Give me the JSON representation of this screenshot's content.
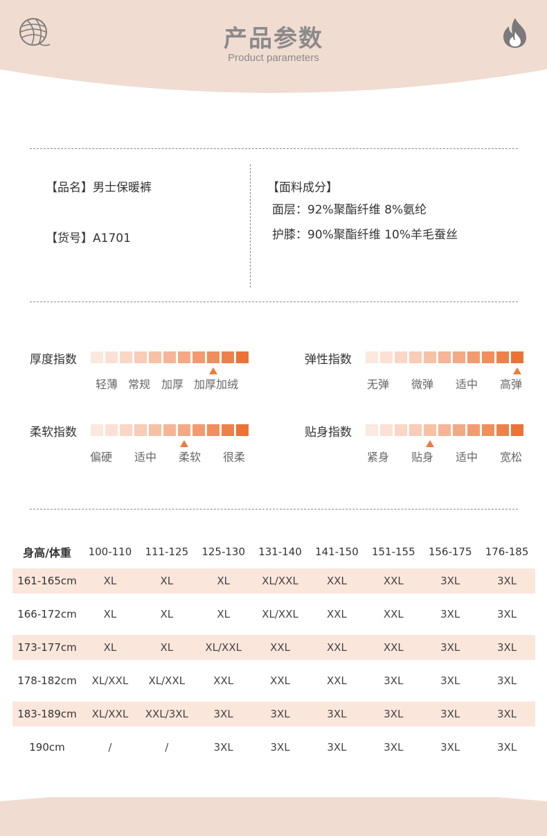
{
  "header": {
    "title": "产品参数",
    "subtitle": "Product parameters",
    "logo_icon": "yarn-ball-icon",
    "right_icon": "flame-icon",
    "band_color": "#f0dcd1"
  },
  "info": {
    "name_label": "【品名】",
    "name_value": "男士保暖裤",
    "code_label": "【货号】",
    "code_value": "A1701",
    "fabric_title": "【面料成分】",
    "fabric_lines": [
      "面层：92%聚酯纤维 8%氨纶",
      "护膝：90%聚酯纤维 10%羊毛蚕丝"
    ]
  },
  "indices": [
    {
      "label": "厚度指数",
      "ticks": [
        "轻薄",
        "常规",
        "加厚",
        "加厚加绒"
      ],
      "level": 9,
      "segments": 11
    },
    {
      "label": "弹性指数",
      "ticks": [
        "无弹",
        "微弹",
        "适中",
        "高弹"
      ],
      "level": 11,
      "segments": 11
    },
    {
      "label": "柔软指数",
      "ticks": [
        "偏硬",
        "适中",
        "柔软",
        "很柔"
      ],
      "level": 7,
      "segments": 11
    },
    {
      "label": "贴身指数",
      "ticks": [
        "紧身",
        "贴身",
        "适中",
        "宽松"
      ],
      "level": 5,
      "segments": 11
    }
  ],
  "size_table": {
    "corner": "身高/体重",
    "columns": [
      "100-110",
      "111-125",
      "125-130",
      "131-140",
      "141-150",
      "151-155",
      "156-175",
      "176-185"
    ],
    "rows": [
      {
        "height": "161-165cm",
        "sizes": [
          "XL",
          "XL",
          "XL",
          "XL/XXL",
          "XXL",
          "XXL",
          "3XL",
          "3XL"
        ]
      },
      {
        "height": "166-172cm",
        "sizes": [
          "XL",
          "XL",
          "XL",
          "XL/XXL",
          "XXL",
          "XXL",
          "3XL",
          "3XL"
        ]
      },
      {
        "height": "173-177cm",
        "sizes": [
          "XL",
          "XL",
          "XL/XXL",
          "XXL",
          "XXL",
          "XXL",
          "3XL",
          "3XL"
        ]
      },
      {
        "height": "178-182cm",
        "sizes": [
          "XL/XXL",
          "XL/XXL",
          "XXL",
          "XXL",
          "XXL",
          "3XL",
          "3XL",
          "3XL"
        ]
      },
      {
        "height": "183-189cm",
        "sizes": [
          "XL/XXL",
          "XXL/3XL",
          "3XL",
          "3XL",
          "3XL",
          "3XL",
          "3XL",
          "3XL"
        ]
      },
      {
        "height": "190cm",
        "sizes": [
          "/",
          "/",
          "3XL",
          "3XL",
          "3XL",
          "3XL",
          "3XL",
          "3XL"
        ]
      }
    ]
  },
  "colors": {
    "scale": [
      "#fbe8df",
      "#fbe1d4",
      "#fad6c6",
      "#f8ccb6",
      "#f7c1a6",
      "#f5b596",
      "#f3a984",
      "#f29b70",
      "#f08e5d",
      "#ee814b",
      "#ec7236"
    ],
    "marker": "#ee7a3c",
    "row_shade": "#fbe6dc"
  }
}
